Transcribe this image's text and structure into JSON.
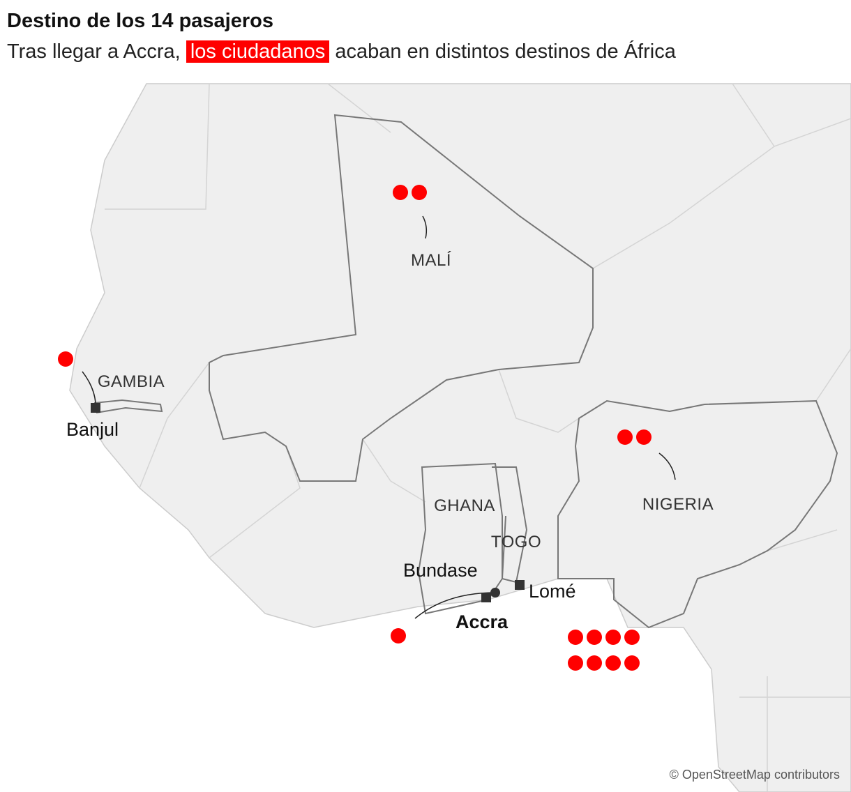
{
  "header": {
    "title": "Destino de los 14 pasajeros",
    "subtitle": {
      "before": "Tras llegar a Accra,",
      "highlight": "los ciudadanos",
      "after": "acaban en distintos destinos de África"
    }
  },
  "map": {
    "countries": [
      "MALÍ",
      "GAMBIA",
      "GHANA",
      "TOGO",
      "NIGERIA"
    ],
    "cities": [
      "Banjul",
      "Bundase",
      "Accra",
      "Lomé"
    ],
    "dot_groups": [
      {
        "count": 2
      },
      {
        "count": 1
      },
      {
        "count": 2
      },
      {
        "count": 1
      },
      {
        "count": 8
      }
    ],
    "attribution": "© OpenStreetMap contributors"
  }
}
